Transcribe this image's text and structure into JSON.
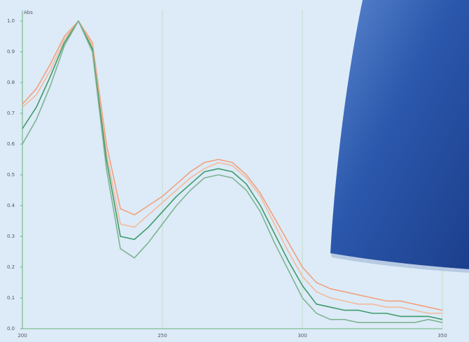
{
  "chart_data": {
    "type": "line",
    "y_label": "Abs",
    "x": [
      200,
      205,
      210,
      215,
      220,
      225,
      230,
      235,
      240,
      245,
      250,
      255,
      260,
      265,
      270,
      275,
      280,
      285,
      290,
      295,
      300,
      305,
      310,
      315,
      320,
      325,
      330,
      335,
      340,
      345,
      350
    ],
    "xlim": [
      200,
      350
    ],
    "xticks": [
      200,
      250,
      300,
      350
    ],
    "ylim": [
      0,
      1
    ],
    "yticks": [
      {
        "value": 0,
        "label": "0.0"
      },
      {
        "value": 0.1,
        "label": "0.1"
      },
      {
        "value": 0.2,
        "label": "0.2"
      },
      {
        "value": 0.3,
        "label": "0.3"
      },
      {
        "value": 0.4,
        "label": "0.4"
      },
      {
        "value": 0.5,
        "label": "0.5"
      },
      {
        "value": 0.6,
        "label": "0.6"
      },
      {
        "value": 0.7,
        "label": "0.7"
      },
      {
        "value": 0.8,
        "label": "0.8"
      },
      {
        "value": 0.9,
        "label": "0.9"
      },
      {
        "value": 1,
        "label": "1.0"
      }
    ],
    "grid": true,
    "series": [
      {
        "color": "#f2a07e",
        "values": [
          0.73,
          0.78,
          0.86,
          0.95,
          1.0,
          0.93,
          0.6,
          0.39,
          0.37,
          0.4,
          0.43,
          0.47,
          0.51,
          0.54,
          0.55,
          0.54,
          0.5,
          0.44,
          0.36,
          0.28,
          0.2,
          0.15,
          0.13,
          0.12,
          0.11,
          0.1,
          0.09,
          0.09,
          0.08,
          0.07,
          0.06
        ]
      },
      {
        "color": "#f5b99a",
        "values": [
          0.72,
          0.76,
          0.84,
          0.94,
          1.0,
          0.92,
          0.57,
          0.34,
          0.33,
          0.37,
          0.41,
          0.45,
          0.49,
          0.52,
          0.54,
          0.53,
          0.49,
          0.43,
          0.34,
          0.25,
          0.17,
          0.12,
          0.1,
          0.09,
          0.08,
          0.08,
          0.07,
          0.07,
          0.06,
          0.05,
          0.05
        ]
      },
      {
        "color": "#3e9a6a",
        "values": [
          0.65,
          0.72,
          0.82,
          0.93,
          1.0,
          0.91,
          0.55,
          0.3,
          0.29,
          0.33,
          0.38,
          0.43,
          0.47,
          0.51,
          0.52,
          0.51,
          0.47,
          0.4,
          0.31,
          0.22,
          0.14,
          0.08,
          0.07,
          0.06,
          0.06,
          0.05,
          0.05,
          0.04,
          0.04,
          0.04,
          0.03
        ]
      },
      {
        "color": "#7fb392",
        "values": [
          0.6,
          0.68,
          0.79,
          0.92,
          1.0,
          0.9,
          0.52,
          0.26,
          0.23,
          0.28,
          0.34,
          0.4,
          0.45,
          0.49,
          0.5,
          0.49,
          0.45,
          0.38,
          0.28,
          0.19,
          0.1,
          0.05,
          0.03,
          0.03,
          0.02,
          0.02,
          0.02,
          0.02,
          0.02,
          0.03,
          0.02
        ]
      }
    ]
  }
}
